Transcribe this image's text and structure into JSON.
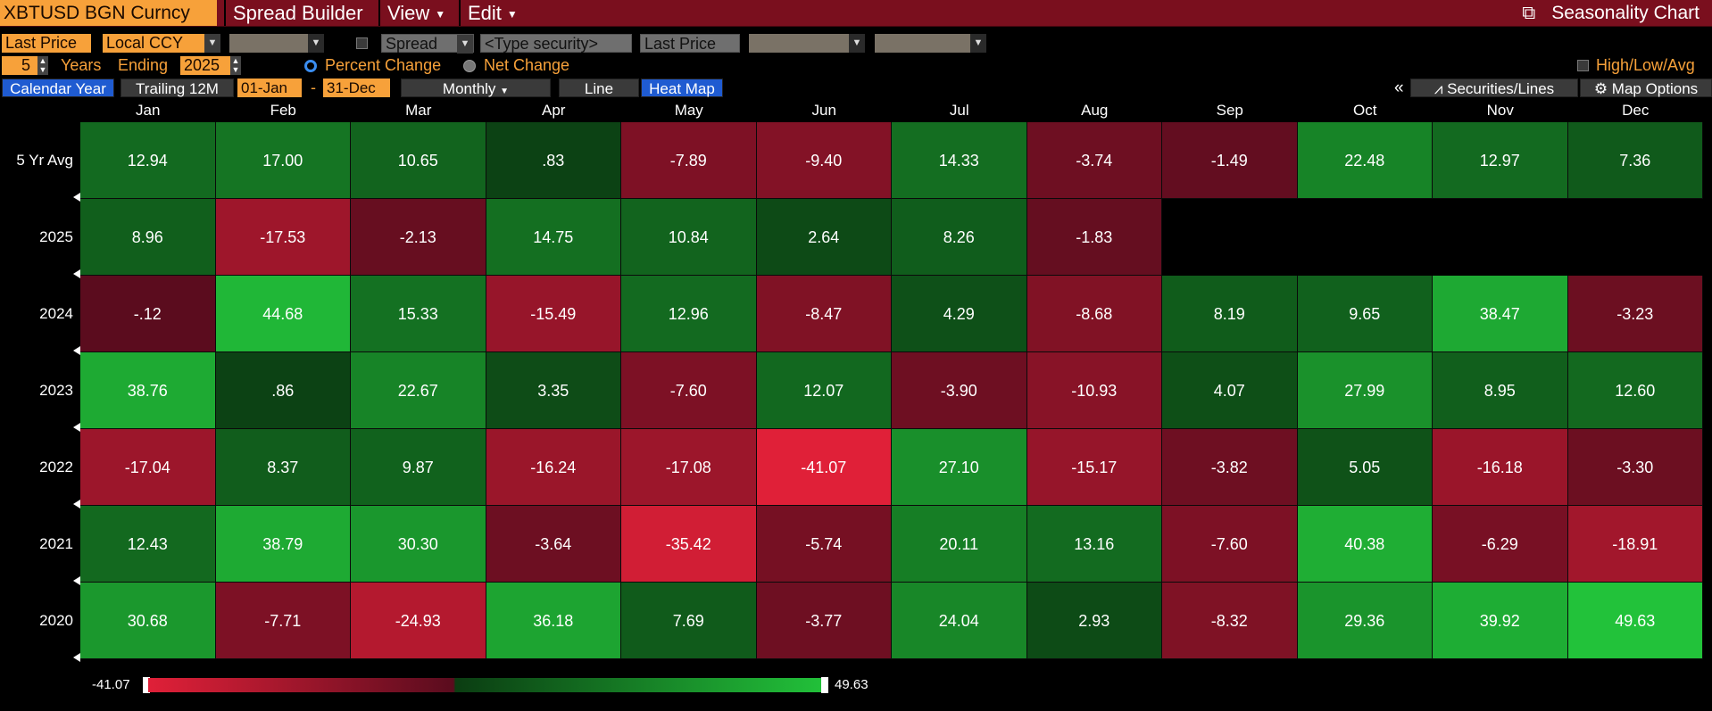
{
  "titlebar": {
    "security": "XBTUSD BGN Curncy",
    "menu_spread": "Spread Builder",
    "menu_view": "View",
    "menu_edit": "Edit",
    "title": "Seasonality Chart",
    "export_icon": "export-icon"
  },
  "controls": {
    "price_field": "Last Price",
    "currency": "Local CCY",
    "spread_label": "Spread",
    "type_security_placeholder": "<Type security>",
    "spread_price_field": "Last Price",
    "years_value": "5",
    "years_label": "Years",
    "ending_label": "Ending",
    "ending_year": "2025",
    "percent_change_label": "Percent Change",
    "net_change_label": "Net Change",
    "high_low_avg_label": "High/Low/Avg",
    "calendar_year": "Calendar Year",
    "trailing_12m": "Trailing 12M",
    "start_date": "01-Jan",
    "date_sep": "-",
    "end_date": "31-Dec",
    "frequency": "Monthly",
    "view_line": "Line",
    "view_heatmap": "Heat Map",
    "collapse": "«",
    "securities_lines": "Securities/Lines",
    "map_options": "Map Options"
  },
  "colors": {
    "neg_extreme": "#e02038",
    "neg_dark": "#5a0c1e",
    "pos_dark": "#0b3d12",
    "pos_extreme": "#22c23a",
    "accent_orange": "#f7a13a",
    "active_blue": "#1f5bd1"
  },
  "chart_data": {
    "type": "heatmap",
    "columns": [
      "Jan",
      "Feb",
      "Mar",
      "Apr",
      "May",
      "Jun",
      "Jul",
      "Aug",
      "Sep",
      "Oct",
      "Nov",
      "Dec"
    ],
    "rows": [
      {
        "label": "5 Yr Avg",
        "values": [
          "12.94",
          "17.00",
          "10.65",
          ".83",
          "-7.89",
          "-9.40",
          "14.33",
          "-3.74",
          "-1.49",
          "22.48",
          "12.97",
          "7.36"
        ]
      },
      {
        "label": "2025",
        "values": [
          "8.96",
          "-17.53",
          "-2.13",
          "14.75",
          "10.84",
          "2.64",
          "8.26",
          "-1.83",
          null,
          null,
          null,
          null
        ]
      },
      {
        "label": "2024",
        "values": [
          "-.12",
          "44.68",
          "15.33",
          "-15.49",
          "12.96",
          "-8.47",
          "4.29",
          "-8.68",
          "8.19",
          "9.65",
          "38.47",
          "-3.23"
        ]
      },
      {
        "label": "2023",
        "values": [
          "38.76",
          ".86",
          "22.67",
          "3.35",
          "-7.60",
          "12.07",
          "-3.90",
          "-10.93",
          "4.07",
          "27.99",
          "8.95",
          "12.60"
        ]
      },
      {
        "label": "2022",
        "values": [
          "-17.04",
          "8.37",
          "9.87",
          "-16.24",
          "-17.08",
          "-41.07",
          "27.10",
          "-15.17",
          "-3.82",
          "5.05",
          "-16.18",
          "-3.30"
        ]
      },
      {
        "label": "2021",
        "values": [
          "12.43",
          "38.79",
          "30.30",
          "-3.64",
          "-35.42",
          "-5.74",
          "20.11",
          "13.16",
          "-7.60",
          "40.38",
          "-6.29",
          "-18.91"
        ]
      },
      {
        "label": "2020",
        "values": [
          "30.68",
          "-7.71",
          "-24.93",
          "36.18",
          "7.69",
          "-3.77",
          "24.04",
          "2.93",
          "-8.32",
          "29.36",
          "39.92",
          "49.63"
        ]
      }
    ],
    "legend_min": "-41.07",
    "legend_max": "49.63",
    "scale_min": -41.07,
    "scale_max": 49.63
  }
}
